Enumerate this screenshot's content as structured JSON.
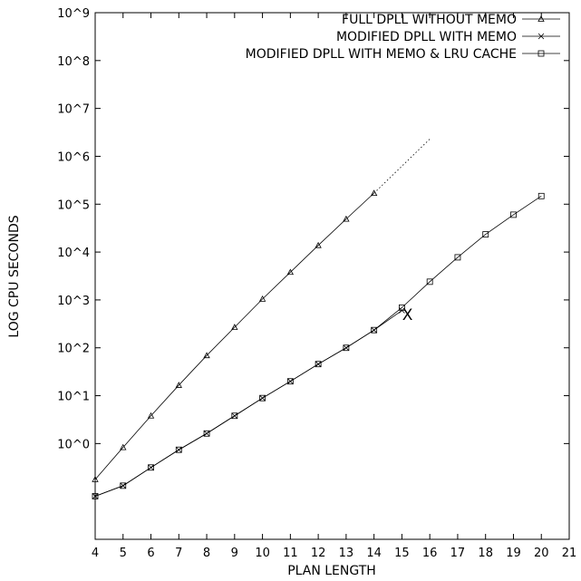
{
  "chart_data": {
    "type": "line",
    "title": "",
    "xlabel": "PLAN LENGTH",
    "ylabel": "LOG CPU SECONDS",
    "x_ticks": [
      4,
      5,
      6,
      7,
      8,
      9,
      10,
      11,
      12,
      13,
      14,
      15,
      16,
      17,
      18,
      19,
      20,
      21
    ],
    "xlim": [
      4,
      21
    ],
    "y_scale": "log10",
    "ylim_log10": [
      -2,
      9
    ],
    "y_ticks": [
      {
        "exp": 0,
        "label": "10^0"
      },
      {
        "exp": 1,
        "label": "10^1"
      },
      {
        "exp": 2,
        "label": "10^2"
      },
      {
        "exp": 3,
        "label": "10^3"
      },
      {
        "exp": 4,
        "label": "10^4"
      },
      {
        "exp": 5,
        "label": "10^5"
      },
      {
        "exp": 6,
        "label": "10^6"
      },
      {
        "exp": 7,
        "label": "10^7"
      },
      {
        "exp": 8,
        "label": "10^8"
      },
      {
        "exp": 9,
        "label": "10^9"
      }
    ],
    "grid": false,
    "legend_position": "top-right",
    "series": [
      {
        "name": "FULL DPLL WITHOUT MEMO",
        "marker": "triangle",
        "x": [
          4,
          5,
          6,
          7,
          8,
          9,
          10,
          11,
          12,
          13,
          14
        ],
        "log10_y": [
          -0.75,
          -0.08,
          0.58,
          1.22,
          1.84,
          2.43,
          3.02,
          3.58,
          4.14,
          4.69,
          5.23
        ]
      },
      {
        "name": "",
        "style": "dotted",
        "x": [
          14,
          16
        ],
        "log10_y": [
          5.23,
          6.36
        ]
      },
      {
        "name": "MODIFIED DPLL WITH MEMO",
        "marker": "cross",
        "x": [
          4,
          5,
          6,
          7,
          8,
          9,
          10,
          11,
          12,
          13,
          14,
          15
        ],
        "log10_y": [
          -1.1,
          -0.88,
          -0.5,
          -0.13,
          0.21,
          0.58,
          0.95,
          1.3,
          1.66,
          2.0,
          2.37,
          2.78
        ]
      },
      {
        "name": "MODIFIED DPLL WITH MEMO & LRU CACHE",
        "marker": "square",
        "x": [
          4,
          5,
          6,
          7,
          8,
          9,
          10,
          11,
          12,
          13,
          14,
          15,
          16,
          17,
          18,
          19,
          20
        ],
        "log10_y": [
          -1.1,
          -0.88,
          -0.5,
          -0.13,
          0.21,
          0.58,
          0.95,
          1.3,
          1.66,
          2.0,
          2.37,
          2.84,
          3.38,
          3.89,
          4.37,
          4.78,
          5.17
        ]
      }
    ],
    "annotations": [
      {
        "text": "X",
        "x": 15.2,
        "log10_y": 2.7
      }
    ]
  }
}
